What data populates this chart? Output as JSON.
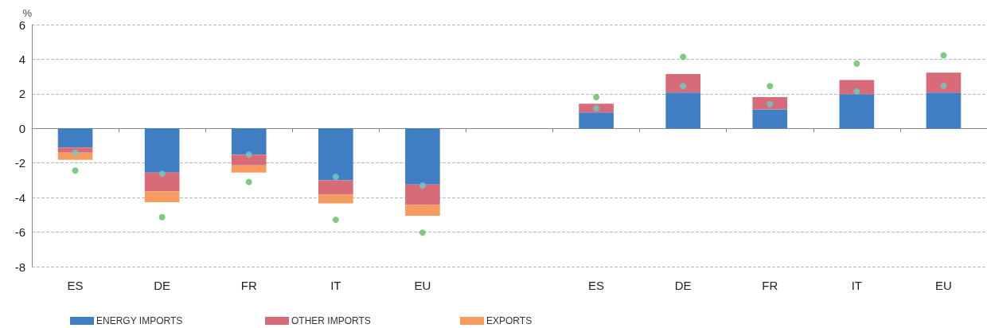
{
  "chart_data": {
    "type": "bar",
    "stacked": true,
    "ylabel": "%",
    "categories": [
      "ES",
      "DE",
      "FR",
      "IT",
      "EU",
      null,
      "ES",
      "DE",
      "FR",
      "IT",
      "EU"
    ],
    "series": [
      {
        "name": "ENERGY IMPORTS",
        "color": "#3f7ec2",
        "values": [
          -1.1,
          -2.55,
          -1.52,
          -3.0,
          -3.24,
          null,
          0.92,
          2.07,
          1.1,
          1.98,
          2.07
        ]
      },
      {
        "name": "OTHER IMPORTS",
        "color": "#d86b78",
        "values": [
          -0.3,
          -1.1,
          -0.62,
          -0.83,
          -1.19,
          null,
          0.51,
          1.08,
          0.71,
          0.82,
          1.15
        ]
      },
      {
        "name": "EXPORTS",
        "color": "#f79c60",
        "values": [
          -0.42,
          -0.62,
          -0.42,
          -0.51,
          -0.62,
          null,
          null,
          null,
          null,
          null,
          null
        ]
      },
      {
        "type": "scatter",
        "color": "#6bcdc9",
        "values": [
          -1.4,
          -2.62,
          -1.52,
          -2.8,
          -3.3,
          null,
          1.15,
          2.44,
          1.41,
          2.14,
          2.47
        ]
      },
      {
        "type": "scatter",
        "color": "#5cbd63",
        "values": [
          -2.44,
          -5.13,
          -3.1,
          -5.29,
          -6.03,
          null,
          1.81,
          4.14,
          2.44,
          3.75,
          4.23
        ]
      }
    ],
    "ylim": [
      -8,
      6
    ],
    "yticks": [
      -8,
      -6,
      -4,
      -2,
      0,
      2,
      4,
      6
    ],
    "grid": "y",
    "legend": "bottom left",
    "marker": "circle"
  }
}
